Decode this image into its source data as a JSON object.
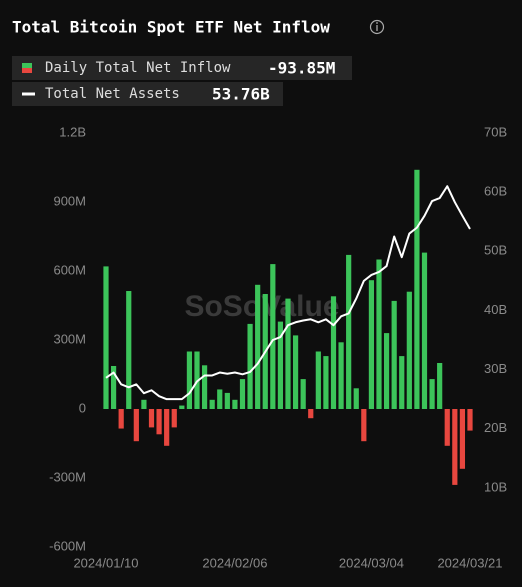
{
  "chart_data": {
    "type": "bar_line",
    "title": "Total Bitcoin Spot ETF Net Inflow",
    "watermark": "SoSoValue",
    "categories": [
      "2024/01/10",
      null,
      null,
      null,
      null,
      null,
      null,
      null,
      null,
      null,
      null,
      null,
      null,
      null,
      null,
      null,
      null,
      "2024/02/06",
      null,
      null,
      null,
      null,
      null,
      null,
      null,
      null,
      null,
      null,
      null,
      null,
      null,
      null,
      null,
      null,
      null,
      "2024/03/04",
      null,
      null,
      null,
      null,
      null,
      null,
      null,
      null,
      null,
      null,
      null,
      null,
      "2024/03/21"
    ],
    "series": [
      {
        "name": "Daily Total Net Inflow",
        "type": "bar",
        "color": "#3cc45a",
        "negative_color": "#e8473f",
        "last_label": "-93.85M",
        "values": [
          620,
          187,
          -85,
          513,
          -140,
          40,
          -80,
          -110,
          -160,
          -80,
          15,
          250,
          250,
          190,
          40,
          85,
          70,
          40,
          130,
          370,
          540,
          500,
          630,
          380,
          480,
          320,
          130,
          -40,
          250,
          230,
          490,
          290,
          670,
          90,
          -140,
          560,
          650,
          330,
          470,
          230,
          510,
          1040,
          680,
          130,
          200,
          -160,
          -330,
          -260,
          -93.85
        ]
      },
      {
        "name": "Total Net Assets",
        "type": "line",
        "axis": "y2",
        "color": "#ffffff",
        "last_label": "53.76B",
        "values": [
          28.6,
          29.5,
          27.5,
          27,
          27.5,
          26,
          26.5,
          25.5,
          25,
          25,
          25,
          26,
          28,
          29,
          29,
          29.5,
          29.3,
          29.5,
          29.2,
          29.6,
          31,
          33,
          35,
          35.5,
          37.5,
          38,
          38.3,
          38.5,
          38,
          38.5,
          37.5,
          39,
          39.5,
          42,
          45,
          46,
          46.5,
          47.5,
          52.5,
          49,
          53,
          54,
          56,
          58.5,
          59,
          61,
          58.3,
          56,
          53.76
        ]
      }
    ],
    "ylim": [
      -600,
      1200
    ],
    "yticks": [
      {
        "value": -600,
        "label": "-600M"
      },
      {
        "value": -300,
        "label": "-300M"
      },
      0,
      {
        "value": 300,
        "label": "300M"
      },
      {
        "value": 600,
        "label": "600M"
      },
      {
        "value": 900,
        "label": "900M"
      },
      {
        "value": 1200,
        "label": "1.2B"
      }
    ],
    "y2lim": [
      0,
      70
    ],
    "y2ticks": [
      {
        "value": 10,
        "label": "10B"
      },
      {
        "value": 20,
        "label": "20B"
      },
      {
        "value": 30,
        "label": "30B"
      },
      {
        "value": 40,
        "label": "40B"
      },
      {
        "value": 50,
        "label": "50B"
      },
      {
        "value": 60,
        "label": "60B"
      },
      {
        "value": 70,
        "label": "70B"
      }
    ],
    "grid": false
  }
}
